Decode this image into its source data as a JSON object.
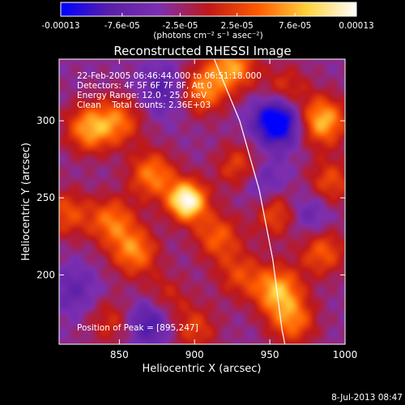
{
  "chart_data": {
    "type": "heatmap",
    "title": "Reconstructed RHESSI Image",
    "xlabel": "Heliocentric X (arcsec)",
    "ylabel": "Heliocentric Y (arcsec)",
    "x_ticks": [
      "850",
      "900",
      "950",
      "1000"
    ],
    "y_ticks": [
      "200",
      "250",
      "300"
    ],
    "x_tick_values": [
      850,
      900,
      950,
      1000
    ],
    "y_tick_values": [
      200,
      250,
      300
    ],
    "xlim": [
      810,
      1000
    ],
    "ylim": [
      155,
      340
    ],
    "colorbar": {
      "ticks": [
        "-0.00013",
        "-7.6e-05",
        "-2.5e-05",
        "2.5e-05",
        "7.6e-05",
        "0.00013"
      ],
      "unit_label": "(photons cm⁻² s⁻¹ asec⁻²)",
      "range": [
        -0.00013,
        0.00013
      ],
      "colormap": [
        "#0000ff",
        "#5a1fa8",
        "#7d2fb0",
        "#c01818",
        "#ff5a00",
        "#ffd23c",
        "#ffffff"
      ]
    },
    "annotations": [
      "22-Feb-2005 06:46:44.000 to 06:51:18.000",
      "Detectors: 4F 5F 6F 7F 8F, Att 0",
      "Energy Range: 12.0 - 25.0 keV",
      "Clean    Total counts: 2.36E+03"
    ],
    "peak_label": "Position of Peak = [895,247]",
    "peak": [
      895,
      247
    ],
    "sources": [
      {
        "x": 895,
        "y": 248,
        "v": 1.0
      },
      {
        "x": 872,
        "y": 265,
        "v": 0.55
      },
      {
        "x": 860,
        "y": 215,
        "v": 0.55
      },
      {
        "x": 845,
        "y": 235,
        "v": 0.5
      },
      {
        "x": 830,
        "y": 295,
        "v": 0.6
      },
      {
        "x": 815,
        "y": 240,
        "v": 0.4
      },
      {
        "x": 850,
        "y": 300,
        "v": 0.45
      },
      {
        "x": 905,
        "y": 320,
        "v": 0.55
      },
      {
        "x": 925,
        "y": 335,
        "v": 0.6
      },
      {
        "x": 915,
        "y": 225,
        "v": 0.45
      },
      {
        "x": 930,
        "y": 270,
        "v": 0.4
      },
      {
        "x": 955,
        "y": 240,
        "v": 0.45
      },
      {
        "x": 955,
        "y": 190,
        "v": 0.65
      },
      {
        "x": 965,
        "y": 170,
        "v": 0.5
      },
      {
        "x": 985,
        "y": 300,
        "v": 0.7
      },
      {
        "x": 990,
        "y": 260,
        "v": 0.4
      },
      {
        "x": 985,
        "y": 215,
        "v": 0.45
      },
      {
        "x": 880,
        "y": 185,
        "v": 0.3
      },
      {
        "x": 900,
        "y": 165,
        "v": 0.35
      },
      {
        "x": 930,
        "y": 200,
        "v": 0.35
      },
      {
        "x": 845,
        "y": 170,
        "v": 0.3
      },
      {
        "x": 960,
        "y": 320,
        "v": 0.35
      },
      {
        "x": 955,
        "y": 300,
        "v": -0.8
      },
      {
        "x": 880,
        "y": 320,
        "v": -0.35
      },
      {
        "x": 870,
        "y": 170,
        "v": -0.45
      },
      {
        "x": 945,
        "y": 260,
        "v": -0.3
      },
      {
        "x": 820,
        "y": 190,
        "v": -0.25
      },
      {
        "x": 975,
        "y": 240,
        "v": -0.3
      }
    ],
    "limb": [
      [
        913,
        340
      ],
      [
        930,
        300
      ],
      [
        943,
        255
      ],
      [
        952,
        210
      ],
      [
        958,
        165
      ],
      [
        960,
        155
      ]
    ]
  },
  "timestamp": "8-Jul-2013 08:47"
}
